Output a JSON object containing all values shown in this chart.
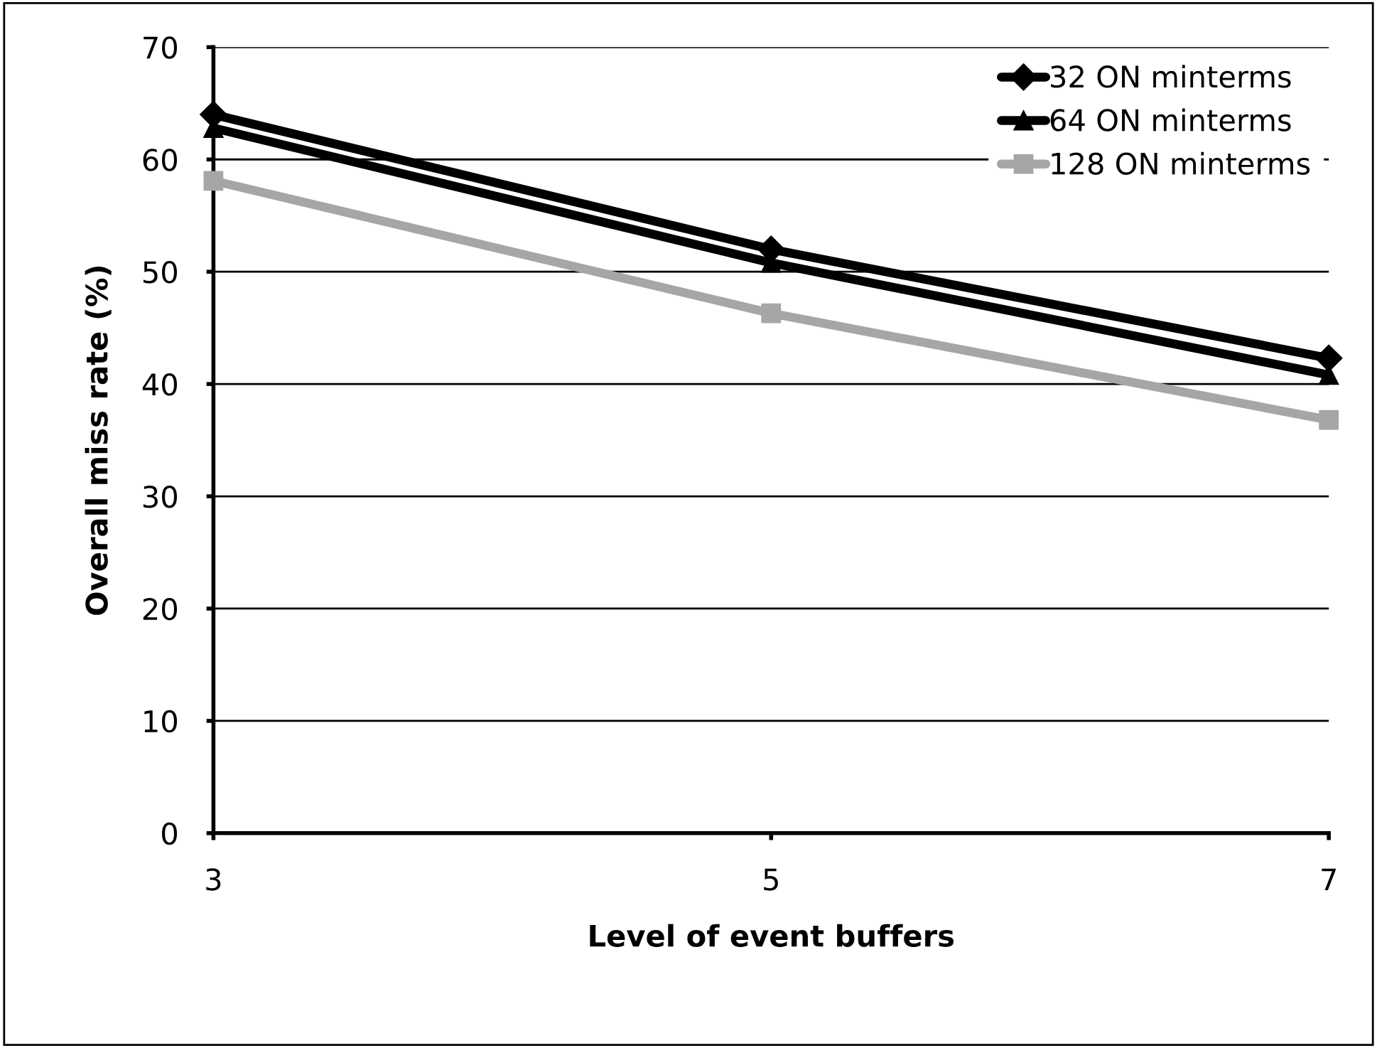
{
  "chart_data": {
    "type": "line",
    "xlabel": "Level of event buffers",
    "ylabel": "Overall miss rate (%)",
    "x": [
      3,
      5,
      7
    ],
    "xlim": [
      3,
      7
    ],
    "xticks": [
      3,
      5,
      7
    ],
    "ylim": [
      0,
      70
    ],
    "yticks": [
      0,
      10,
      20,
      30,
      40,
      50,
      60,
      70
    ],
    "grid": "y",
    "legend": "top right",
    "series": [
      {
        "name": "32 ON minterms",
        "color": "#000000",
        "marker": "diamond",
        "values": [
          64,
          52,
          42.3
        ]
      },
      {
        "name": "64 ON minterms",
        "color": "#000000",
        "marker": "triangle",
        "values": [
          62.8,
          50.8,
          40.8
        ]
      },
      {
        "name": "128 ON minterms",
        "color": "#a6a6a6",
        "marker": "square",
        "values": [
          58.1,
          46.3,
          36.8
        ]
      }
    ]
  }
}
